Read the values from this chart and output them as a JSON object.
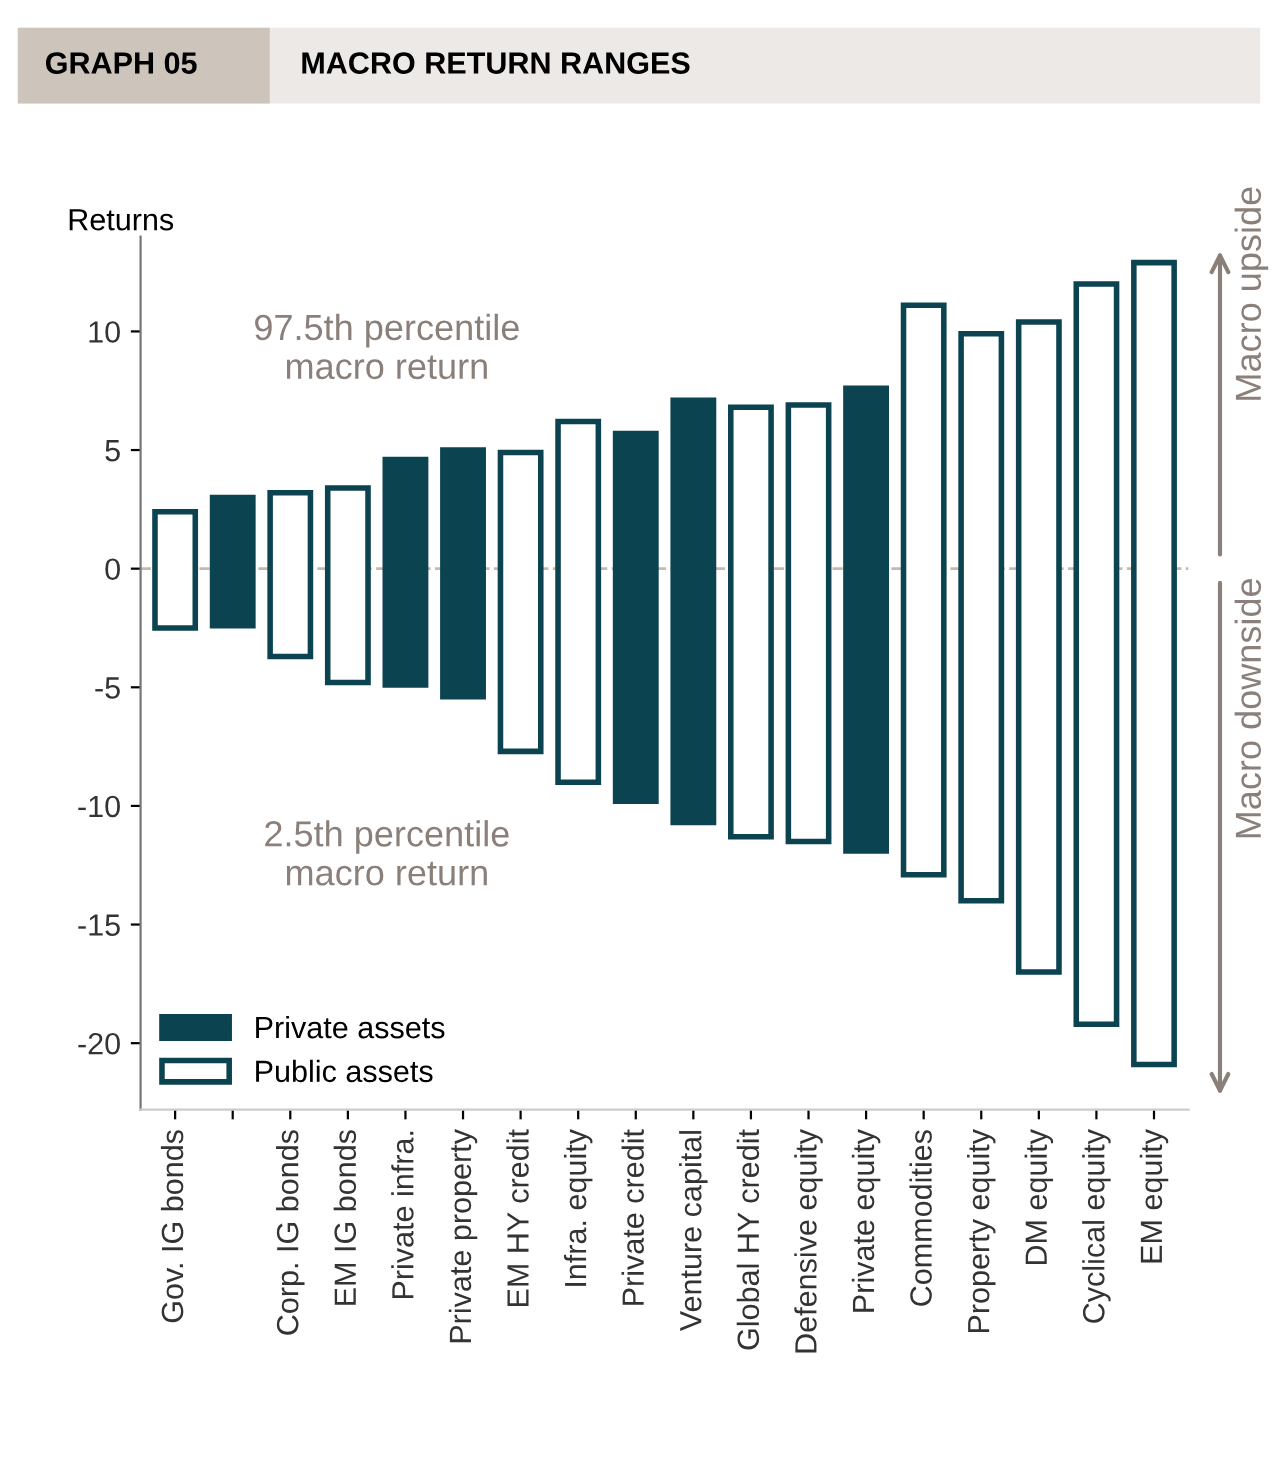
{
  "chart_data": {
    "type": "bar",
    "title": "GRAPH 05",
    "subtitle": "MACRO RETURN RANGES",
    "ylabel": "Returns",
    "categories": [
      "Gov. IG bonds",
      null,
      "Corp. IG bonds",
      "EM IG bonds",
      "Private infra.",
      "Private property",
      "EM HY credit",
      "Infra. equity",
      "Private credit",
      "Venture capital",
      "Global HY credit",
      "Defensive equity",
      "Private equity",
      "Commodities",
      "Property equity",
      "DM equity",
      "Cyclical equity",
      "EM equity"
    ],
    "series": [
      {
        "name": "Private assets",
        "color": "#0b4450",
        "base": [
          null,
          -2.4,
          null,
          null,
          -4.9,
          -5.4,
          null,
          null,
          -9.8,
          -10.7,
          null,
          null,
          -11.9,
          null,
          null,
          null,
          null,
          null
        ],
        "values": [
          null,
          5.4,
          null,
          null,
          9.5,
          10.4,
          null,
          null,
          15.5,
          17.8,
          null,
          null,
          19.5,
          null,
          null,
          null,
          null,
          null
        ]
      },
      {
        "name": "Public assets",
        "color": "#0b4450",
        "base": [
          -2.5,
          null,
          -3.7,
          -4.8,
          null,
          null,
          -7.7,
          -9.0,
          null,
          null,
          -11.3,
          -11.5,
          null,
          -12.9,
          -14.0,
          -17.0,
          -19.2,
          -20.9
        ],
        "values": [
          4.9,
          null,
          6.9,
          8.2,
          null,
          null,
          12.6,
          15.2,
          null,
          null,
          18.1,
          18.4,
          null,
          24.0,
          23.9,
          27.4,
          31.2,
          33.8
        ]
      }
    ],
    "ylim": [
      -22.8,
      14
    ],
    "yticks": [
      -20,
      -15,
      -10,
      -5,
      0,
      5,
      10
    ],
    "ref_lines": [
      {
        "axis": "y",
        "value": 0,
        "label": null,
        "color": "#c9b8aa",
        "line_style": "dashed"
      }
    ],
    "annotations": [
      "97.5th percentile\nmacro return",
      "2.5th percentile\nmacro return",
      "Macro upside",
      "Macro downside"
    ],
    "legend": "bottom left",
    "grid": false
  }
}
